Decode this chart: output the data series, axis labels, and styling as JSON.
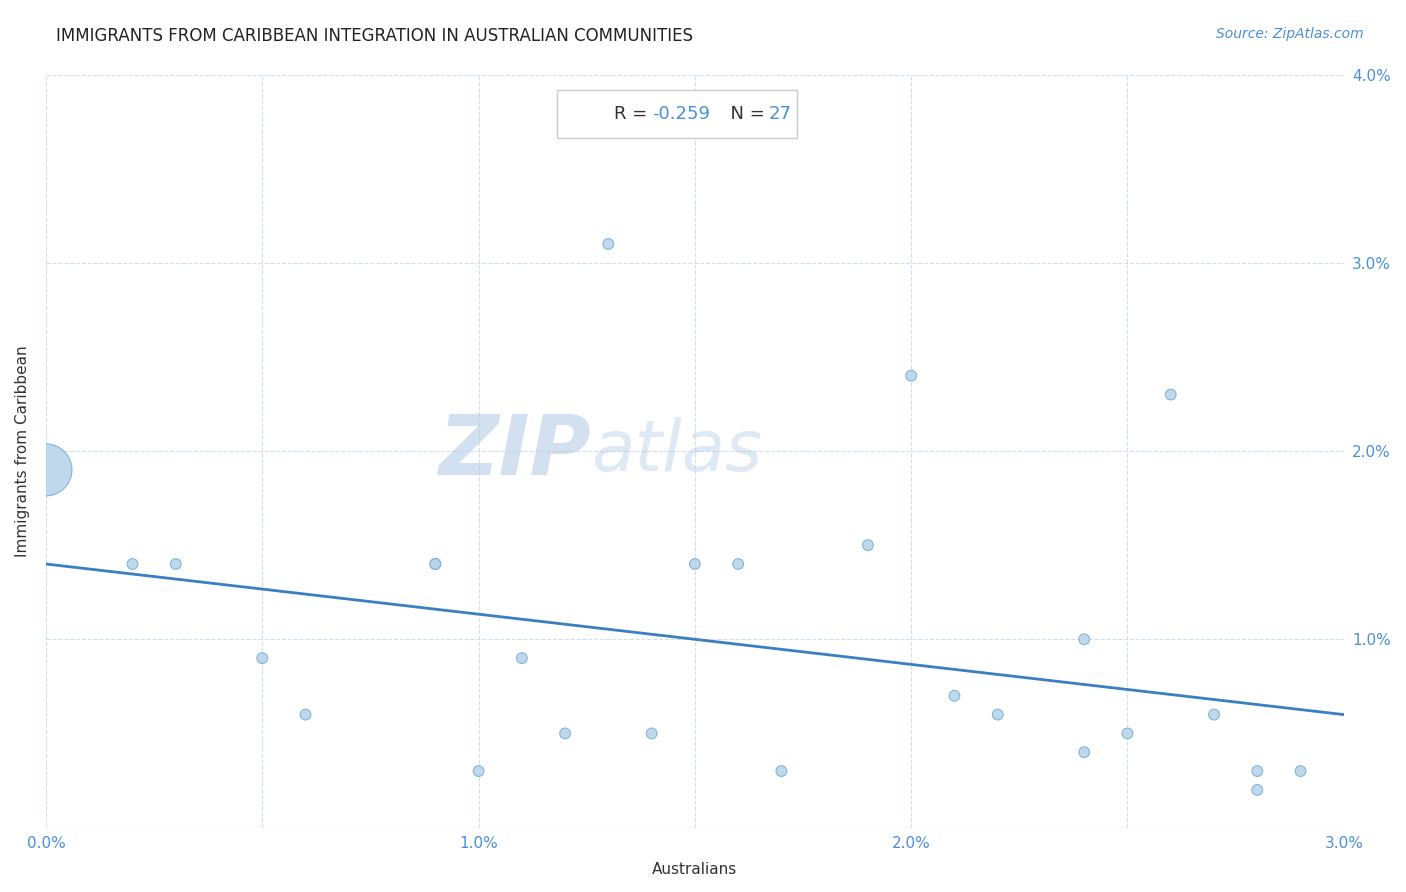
{
  "title": "IMMIGRANTS FROM CARIBBEAN INTEGRATION IN AUSTRALIAN COMMUNITIES",
  "source": "Source: ZipAtlas.com",
  "xlabel": "Australians",
  "ylabel": "Immigrants from Caribbean",
  "R": -0.259,
  "N": 27,
  "xlim": [
    0.0,
    0.03
  ],
  "ylim": [
    0.0,
    0.04
  ],
  "xticks": [
    0.0,
    0.005,
    0.01,
    0.015,
    0.02,
    0.025,
    0.03
  ],
  "xtick_labels": [
    "0.0%",
    "",
    "1.0%",
    "",
    "2.0%",
    "",
    "3.0%"
  ],
  "yticks": [
    0.0,
    0.01,
    0.02,
    0.03,
    0.04
  ],
  "ytick_labels_right": [
    "",
    "1.0%",
    "2.0%",
    "3.0%",
    "4.0%"
  ],
  "scatter_x": [
    0.0,
    0.002,
    0.003,
    0.005,
    0.006,
    0.009,
    0.009,
    0.01,
    0.011,
    0.012,
    0.013,
    0.014,
    0.015,
    0.016,
    0.017,
    0.019,
    0.02,
    0.021,
    0.022,
    0.024,
    0.024,
    0.025,
    0.026,
    0.027,
    0.028,
    0.028,
    0.029
  ],
  "scatter_y": [
    0.019,
    0.014,
    0.014,
    0.009,
    0.006,
    0.014,
    0.014,
    0.003,
    0.009,
    0.005,
    0.031,
    0.005,
    0.014,
    0.014,
    0.003,
    0.015,
    0.024,
    0.007,
    0.006,
    0.01,
    0.004,
    0.005,
    0.023,
    0.006,
    0.002,
    0.003,
    0.003
  ],
  "scatter_sizes": [
    1400,
    60,
    60,
    60,
    60,
    60,
    60,
    60,
    60,
    60,
    60,
    60,
    60,
    60,
    60,
    60,
    60,
    60,
    60,
    60,
    60,
    60,
    60,
    60,
    60,
    60,
    60
  ],
  "scatter_color": "#b8d4ea",
  "scatter_edgecolor": "#7ab0d4",
  "trendline_color": "#3a7fc1",
  "trend_x": [
    0.0,
    0.03
  ],
  "trend_y": [
    0.014,
    0.006
  ],
  "annotation_box_color": "#ffffff",
  "annotation_border_color": "#cccccc",
  "R_value_color": "#4a90d9",
  "N_value_color": "#4a90d9",
  "label_text_color": "#333333",
  "title_fontsize": 12,
  "source_fontsize": 10,
  "axis_label_fontsize": 11,
  "tick_fontsize": 11,
  "watermark_color": "#ccddf0",
  "watermark_fontsize": 60,
  "grid_color": "#d0dff0",
  "grid_linestyle": "--",
  "background_color": "#ffffff"
}
